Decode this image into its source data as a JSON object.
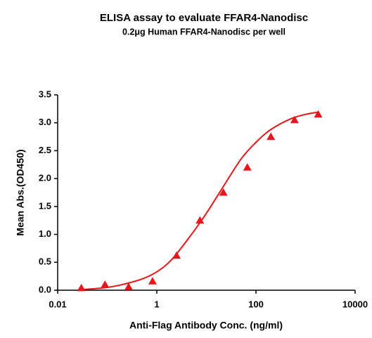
{
  "chart_data": {
    "type": "scatter",
    "title": "ELISA assay to evaluate FFAR4-Nanodisc",
    "subtitle": "0.2μg Human FFAR4-Nanodisc per well",
    "x_label": "Anti-Flag Antibody Conc. (ng/ml)",
    "y_label": "Mean Abs.(OD450)",
    "x_scale": "log",
    "xlim": [
      0.01,
      10000
    ],
    "xticks": [
      0.01,
      1,
      100,
      10000
    ],
    "ylim": [
      0,
      3.5
    ],
    "yticks": [
      {
        "value": 0,
        "label": "0.0"
      },
      0.5,
      {
        "value": 1,
        "label": "1.0"
      },
      1.5,
      {
        "value": 2,
        "label": "2.0"
      },
      2.5,
      {
        "value": 3,
        "label": "3.0"
      },
      3.5
    ],
    "grid": false,
    "series": [
      {
        "type": "scatter",
        "marker": "triangle",
        "color": "#e8161b",
        "x": [
          0.03,
          0.09,
          0.27,
          0.82,
          2.5,
          7.4,
          22,
          67,
          200,
          600,
          1800
        ],
        "values": [
          0.04,
          0.1,
          0.06,
          0.16,
          0.62,
          1.25,
          1.75,
          2.2,
          2.75,
          3.05,
          3.15
        ]
      },
      {
        "type": "line",
        "color": "#e8161b",
        "x": [
          0.03,
          0.06,
          0.1,
          0.2,
          0.5,
          1,
          2,
          5,
          10,
          20,
          50,
          100,
          200,
          500,
          1000,
          1800
        ],
        "values": [
          0.01,
          0.03,
          0.05,
          0.1,
          0.2,
          0.33,
          0.55,
          1.0,
          1.38,
          1.8,
          2.35,
          2.65,
          2.88,
          3.07,
          3.15,
          3.19
        ]
      }
    ]
  }
}
